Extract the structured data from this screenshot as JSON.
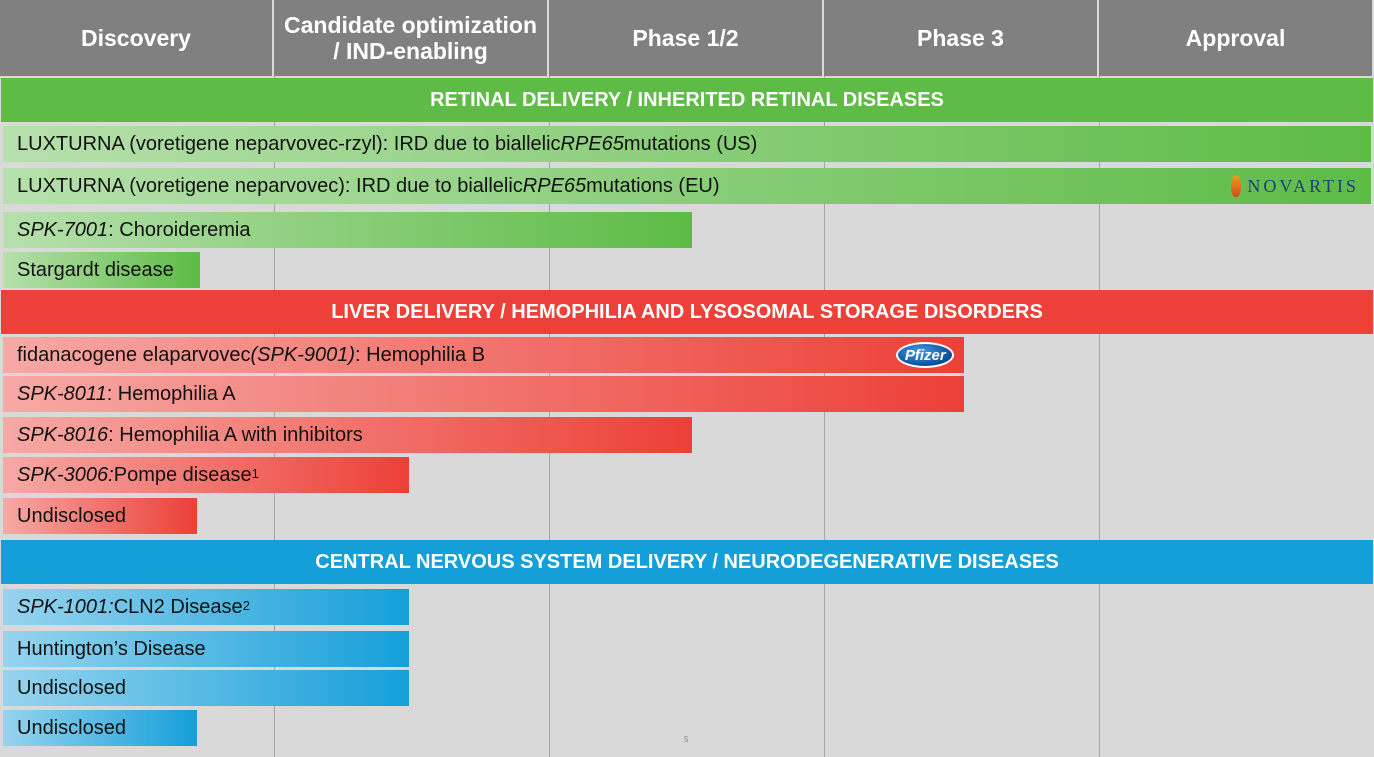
{
  "chart_data": {
    "type": "gantt",
    "stages": [
      "Discovery",
      "Candidate optimization\n/ IND-enabling",
      "Phase 1/2",
      "Phase 3",
      "Approval"
    ],
    "sections": [
      {
        "title": "RETINAL DELIVERY / INHERITED RETINAL DISEASES",
        "color": "#5dbb46",
        "programs": [
          {
            "parts": [
              {
                "text": "LUXTURNA (voretigene neparvovec-rzyl): IRD due to biallelic ",
                "italic": false
              },
              {
                "text": "RPE65",
                "italic": true
              },
              {
                "text": " mutations (US)",
                "italic": false
              }
            ],
            "stage_progress": 5.0
          },
          {
            "parts": [
              {
                "text": "LUXTURNA (voretigene neparvovec): IRD due to biallelic ",
                "italic": false
              },
              {
                "text": "RPE65",
                "italic": true
              },
              {
                "text": " mutations (EU)",
                "italic": false
              }
            ],
            "stage_progress": 5.0,
            "partner": "novartis",
            "partner_label": "NOVARTIS"
          },
          {
            "parts": [
              {
                "text": "SPK-7001",
                "italic": true
              },
              {
                "text": ": Choroideremia",
                "italic": false
              }
            ],
            "stage_progress": 2.52
          },
          {
            "parts": [
              {
                "text": "Stargardt disease",
                "italic": false
              }
            ],
            "stage_progress": 0.73
          }
        ]
      },
      {
        "title": "LIVER DELIVERY / HEMOPHILIA AND LYSOSOMAL STORAGE DISORDERS",
        "color": "#ec4038",
        "programs": [
          {
            "parts": [
              {
                "text": "fidanacogene elaparvovec ",
                "italic": false
              },
              {
                "text": "(SPK-9001)",
                "italic": true
              },
              {
                "text": ": Hemophilia B",
                "italic": false
              }
            ],
            "stage_progress": 3.51,
            "partner": "pfizer",
            "partner_label": "Pfizer"
          },
          {
            "parts": [
              {
                "text": "SPK-8011",
                "italic": true
              },
              {
                "text": ": Hemophilia A",
                "italic": false
              }
            ],
            "stage_progress": 3.51
          },
          {
            "parts": [
              {
                "text": "SPK-8016",
                "italic": true
              },
              {
                "text": ": Hemophilia A with inhibitors",
                "italic": false
              }
            ],
            "stage_progress": 2.52
          },
          {
            "parts": [
              {
                "text": "SPK-3006:",
                "italic": true
              },
              {
                "text": " Pompe disease",
                "italic": false
              }
            ],
            "sup": "1",
            "stage_progress": 1.49
          },
          {
            "parts": [
              {
                "text": "Undisclosed",
                "italic": false
              }
            ],
            "stage_progress": 0.72
          }
        ]
      },
      {
        "title": "CENTRAL NERVOUS SYSTEM DELIVERY / NEURODEGENERATIVE DISEASES",
        "color": "#159fd9",
        "programs": [
          {
            "parts": [
              {
                "text": "SPK-1001:",
                "italic": true
              },
              {
                "text": " CLN2 Disease",
                "italic": false
              }
            ],
            "sup": "2",
            "stage_progress": 1.49
          },
          {
            "parts": [
              {
                "text": "Huntington’s Disease",
                "italic": false
              }
            ],
            "stage_progress": 1.49
          },
          {
            "parts": [
              {
                "text": "Undisclosed",
                "italic": false
              }
            ],
            "stage_progress": 1.49
          },
          {
            "parts": [
              {
                "text": "Undisclosed",
                "italic": false
              }
            ],
            "stage_progress": 0.72
          }
        ]
      }
    ]
  },
  "page_number": "5"
}
